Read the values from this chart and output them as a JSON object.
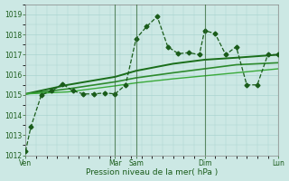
{
  "xlabel": "Pression niveau de la mer( hPa )",
  "bg_color": "#cce8e4",
  "grid_color": "#aad4d0",
  "text_color": "#1a5c1a",
  "line_color_dark": "#1a5c1a",
  "line_color_mid": "#2d8a2d",
  "line_color_light": "#3aaa3a",
  "vline_color": "#336633",
  "ylim": [
    1012,
    1019.5
  ],
  "yticks": [
    1012,
    1013,
    1014,
    1015,
    1016,
    1017,
    1018,
    1019
  ],
  "xlim": [
    0,
    24
  ],
  "xtick_labels": [
    "Ven",
    "Mar",
    "Sam",
    "Dim",
    "Lun"
  ],
  "xtick_positions": [
    0,
    8.5,
    10.5,
    17,
    24
  ],
  "vline_positions": [
    8.5,
    10.5,
    17,
    24
  ],
  "series_dotted": {
    "x": [
      0,
      0.5,
      1.5,
      2.5,
      3.5,
      4.5,
      5.5,
      6.5,
      7.5,
      8.5,
      9.5,
      10.5,
      11.5,
      12.5,
      13.5,
      14.5,
      15.5,
      16.5,
      17.0,
      18.0,
      19.0,
      20.0,
      21.0,
      22.0,
      23.0,
      24.0
    ],
    "y": [
      1012.2,
      1013.4,
      1015.0,
      1015.2,
      1015.55,
      1015.2,
      1015.05,
      1015.05,
      1015.1,
      1015.05,
      1015.5,
      1017.8,
      1018.4,
      1018.9,
      1017.4,
      1017.05,
      1017.1,
      1017.0,
      1018.2,
      1018.05,
      1017.0,
      1017.4,
      1015.5,
      1015.5,
      1017.0,
      1017.0
    ],
    "color": "#1a5c1a",
    "linewidth": 0.9,
    "marker": "D",
    "markersize": 2.5,
    "linestyle": "--"
  },
  "series_smooth": [
    {
      "x": [
        0,
        4,
        8.5,
        10.5,
        14,
        17,
        20,
        24
      ],
      "y": [
        1015.05,
        1015.5,
        1015.9,
        1016.2,
        1016.55,
        1016.75,
        1016.85,
        1017.0
      ],
      "color": "#1a6e1a",
      "linewidth": 1.4,
      "linestyle": "-"
    },
    {
      "x": [
        0,
        4,
        8.5,
        10.5,
        14,
        17,
        20,
        24
      ],
      "y": [
        1015.05,
        1015.3,
        1015.65,
        1015.85,
        1016.1,
        1016.3,
        1016.5,
        1016.6
      ],
      "color": "#2d8a2d",
      "linewidth": 1.2,
      "linestyle": "-"
    },
    {
      "x": [
        0,
        4,
        8.5,
        10.5,
        14,
        17,
        20,
        24
      ],
      "y": [
        1015.05,
        1015.15,
        1015.45,
        1015.6,
        1015.8,
        1015.95,
        1016.1,
        1016.3
      ],
      "color": "#3aaa3a",
      "linewidth": 1.0,
      "linestyle": "-"
    }
  ]
}
